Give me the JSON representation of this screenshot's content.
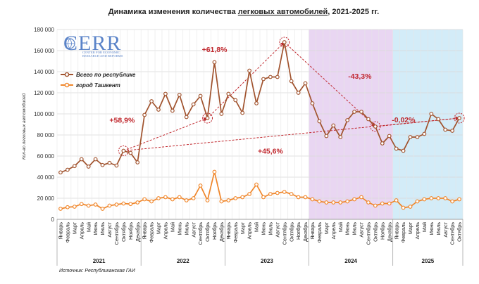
{
  "chart_data": {
    "type": "line",
    "title_pre": "Динамика изменения количества ",
    "title_link": "легковых автомобилей",
    "title_post": ", 2021-2025 гг.",
    "ylabel": "Кол-во легковых автомобилей",
    "ylim": [
      0,
      180000
    ],
    "yticks": [
      "0",
      "20 000",
      "40 000",
      "60 000",
      "80 000",
      "100 000",
      "120 000",
      "140 000",
      "160 000",
      "180 000"
    ],
    "grid": true,
    "legend_position": "center-left",
    "years": [
      {
        "label": "2021",
        "count": 12
      },
      {
        "label": "2022",
        "count": 12
      },
      {
        "label": "2023",
        "count": 12
      },
      {
        "label": "2024",
        "count": 12
      },
      {
        "label": "2025",
        "count": 10
      }
    ],
    "categories": [
      "Январь",
      "Февраль",
      "Март",
      "Апрель",
      "Май",
      "Июнь",
      "Июль",
      "Август",
      "Сентябрь",
      "Октябрь",
      "Ноябрь",
      "Декабрь",
      "Январь",
      "Февраль",
      "Март",
      "Апрель",
      "Май",
      "Июнь",
      "Июль",
      "Август",
      "Сентябрь",
      "Октябрь",
      "Ноябрь",
      "Декабрь",
      "Январь",
      "Февраль",
      "Март",
      "Апрель",
      "Май",
      "Июнь",
      "Июль",
      "Август",
      "Сентябрь",
      "Октябрь",
      "Ноябрь",
      "Декабрь",
      "Январь",
      "Февраль",
      "Март",
      "Апрель",
      "Май",
      "Июнь",
      "Июль",
      "Август",
      "Сентябрь",
      "Октябрь",
      "Ноябрь",
      "Декабрь",
      "Январь",
      "Февраль",
      "Март",
      "Апрель",
      "Май",
      "Июнь",
      "Июль",
      "Август",
      "Сентябрь",
      "Октябрь"
    ],
    "series": [
      {
        "name": "Всего по республике",
        "color": "#a0522d",
        "values": [
          44500,
          47000,
          50500,
          57000,
          50000,
          57000,
          51500,
          53500,
          51000,
          65000,
          63000,
          54000,
          99000,
          112000,
          104000,
          119000,
          103000,
          118000,
          97000,
          109000,
          117000,
          96000,
          149000,
          100000,
          119000,
          113000,
          101000,
          141000,
          110000,
          133000,
          135000,
          135000,
          168000,
          131000,
          120000,
          129000,
          110000,
          93000,
          79000,
          89000,
          78000,
          94000,
          102000,
          102000,
          95000,
          88000,
          72000,
          79000,
          67000,
          65000,
          78000,
          78000,
          81000,
          100000,
          95000,
          85000,
          84000,
          96000
        ]
      },
      {
        "name": "город Ташкент",
        "color": "#f0862a",
        "values": [
          10000,
          11500,
          12000,
          14500,
          13000,
          14000,
          10000,
          13000,
          14000,
          15000,
          14500,
          16000,
          19000,
          17000,
          20000,
          21000,
          19000,
          21000,
          18000,
          20000,
          32000,
          18000,
          45000,
          17000,
          18000,
          20000,
          21000,
          24000,
          33000,
          21000,
          24000,
          25000,
          26000,
          24000,
          21000,
          21000,
          19000,
          17000,
          16000,
          16000,
          16000,
          17000,
          19000,
          21000,
          16000,
          13000,
          15000,
          15000,
          18000,
          11000,
          12000,
          17000,
          19000,
          20000,
          20000,
          20000,
          17000,
          19000
        ]
      }
    ],
    "regions": [
      {
        "label": "2024",
        "start": 36,
        "end": 47,
        "color": "#e9d6f2"
      },
      {
        "label": "2025",
        "start": 48,
        "end": 57,
        "color": "#d3ecf8"
      }
    ],
    "annotations": [
      {
        "text": "+58,9%",
        "from": 9,
        "to": 21
      },
      {
        "text": "+61,8%",
        "from": 21,
        "to": 32
      },
      {
        "text": "-43,3%",
        "from": 32,
        "to": 45
      },
      {
        "text": "-0,02%",
        "from": 45,
        "to": 57
      },
      {
        "text": "+45,6%",
        "from": 9,
        "to": 57
      }
    ]
  },
  "logo": {
    "name": "CERR",
    "sub1": "CENTER FOR ECONOMIC",
    "sub2": "RESEARCH AND REFORMS"
  },
  "source": "Источник: Республиканская ГАИ"
}
